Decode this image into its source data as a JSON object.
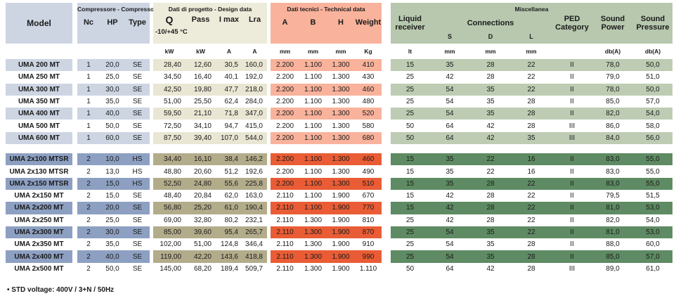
{
  "colors": {
    "blue_light": "#cdd5e3",
    "blue_dark": "#8da0c2",
    "beige_header": "#edebd9",
    "beige_light": "#e9e6d3",
    "beige_dark": "#b3ac8b",
    "salmon": "#f9b29b",
    "orange": "#e95c35",
    "green_header": "#b7c8ae",
    "green_light": "#bdccb3",
    "green_dark": "#5e8b63",
    "text": "#1a1a1a"
  },
  "table": {
    "sections": {
      "compressor": {
        "title": "Compressore - Compressor"
      },
      "design": {
        "title": "Dati di progetto - Design data",
        "subtitle": "-10/+45 °C"
      },
      "technical": {
        "title": "Dati tecnici - Technical data"
      },
      "miscellanea": {
        "title": "Miscellanea"
      }
    },
    "columns": {
      "model": "Model",
      "nc": "Nc",
      "hp": "HP",
      "type": "Type",
      "q": "Q",
      "pass": "Pass",
      "imax": "I max",
      "lra": "Lra",
      "a": "A",
      "b": "B",
      "h": "H",
      "weight": "Weight",
      "liquid_receiver": "Liquid receiver",
      "connections": "Connections",
      "s": "S",
      "d": "D",
      "l": "L",
      "ped": "PED Category",
      "sound_power": "Sound Power",
      "sound_pressure": "Sound Pressure"
    },
    "units": {
      "q": "kW",
      "pass": "kW",
      "imax": "A",
      "lra": "A",
      "a": "mm",
      "b": "mm",
      "h": "mm",
      "weight": "Kg",
      "liquid_receiver": "lt",
      "s": "mm",
      "d": "mm",
      "l": "mm",
      "sound_power": "db(A)",
      "sound_pressure": "db(A)"
    },
    "groups": [
      {
        "rows": [
          {
            "shaded": true,
            "values": [
              "UMA 200 MT",
              "1",
              "20,0",
              "SE",
              "28,40",
              "12,60",
              "30,5",
              "160,0",
              "2.200",
              "1.100",
              "1.300",
              "410",
              "15",
              "35",
              "28",
              "22",
              "II",
              "78,0",
              "50,0"
            ]
          },
          {
            "shaded": false,
            "values": [
              "UMA 250 MT",
              "1",
              "25,0",
              "SE",
              "34,50",
              "16,40",
              "40,1",
              "192,0",
              "2.200",
              "1.100",
              "1.300",
              "430",
              "25",
              "42",
              "28",
              "22",
              "II",
              "79,0",
              "51,0"
            ]
          },
          {
            "shaded": true,
            "values": [
              "UMA 300 MT",
              "1",
              "30,0",
              "SE",
              "42,50",
              "19,80",
              "47,7",
              "218,0",
              "2.200",
              "1.100",
              "1.300",
              "460",
              "25",
              "54",
              "35",
              "22",
              "II",
              "78,0",
              "50,0"
            ]
          },
          {
            "shaded": false,
            "values": [
              "UMA 350 MT",
              "1",
              "35,0",
              "SE",
              "51,00",
              "25,50",
              "62,4",
              "284,0",
              "2.200",
              "1.100",
              "1.300",
              "480",
              "25",
              "54",
              "35",
              "28",
              "II",
              "85,0",
              "57,0"
            ]
          },
          {
            "shaded": true,
            "values": [
              "UMA 400 MT",
              "1",
              "40,0",
              "SE",
              "59,50",
              "21,10",
              "71,8",
              "347,0",
              "2.200",
              "1.100",
              "1.300",
              "520",
              "25",
              "54",
              "35",
              "28",
              "II",
              "82,0",
              "54,0"
            ]
          },
          {
            "shaded": false,
            "values": [
              "UMA 500 MT",
              "1",
              "50,0",
              "SE",
              "72,50",
              "34,10",
              "94,7",
              "415,0",
              "2.200",
              "1.100",
              "1.300",
              "580",
              "50",
              "64",
              "42",
              "28",
              "III",
              "86,0",
              "58,0"
            ]
          },
          {
            "shaded": true,
            "values": [
              "UMA 600 MT",
              "1",
              "60,0",
              "SE",
              "87,50",
              "39,40",
              "107,0",
              "544,0",
              "2.200",
              "1.100",
              "1.300",
              "680",
              "50",
              "64",
              "42",
              "35",
              "III",
              "84,0",
              "56,0"
            ]
          }
        ]
      },
      {
        "rows": [
          {
            "shaded": true,
            "values": [
              "UMA 2x100 MTSR",
              "2",
              "10,0",
              "HS",
              "34,40",
              "16,10",
              "38,4",
              "146,2",
              "2.200",
              "1.100",
              "1.300",
              "460",
              "15",
              "35",
              "22",
              "16",
              "II",
              "83,0",
              "55,0"
            ]
          },
          {
            "shaded": false,
            "values": [
              "UMA 2x130 MTSR",
              "2",
              "13,0",
              "HS",
              "48,80",
              "20,60",
              "51,2",
              "192,6",
              "2.200",
              "1.100",
              "1.300",
              "490",
              "15",
              "35",
              "22",
              "16",
              "II",
              "83,0",
              "55,0"
            ]
          },
          {
            "shaded": true,
            "values": [
              "UMA 2x150 MTSR",
              "2",
              "15,0",
              "HS",
              "52,50",
              "24,80",
              "55,6",
              "225,8",
              "2.200",
              "1.100",
              "1.300",
              "510",
              "15",
              "35",
              "28",
              "22",
              "II",
              "83,0",
              "55,0"
            ]
          },
          {
            "shaded": false,
            "values": [
              "UMA 2x150 MT",
              "2",
              "15,0",
              "SE",
              "48,40",
              "20,84",
              "62,0",
              "163,0",
              "2.110",
              "1.100",
              "1.900",
              "670",
              "15",
              "42",
              "28",
              "22",
              "II",
              "79,5",
              "51,5"
            ]
          },
          {
            "shaded": true,
            "values": [
              "UMA 2x200 MT",
              "2",
              "20,0",
              "SE",
              "56,80",
              "25,20",
              "61,0",
              "190,4",
              "2.110",
              "1.100",
              "1.900",
              "770",
              "15",
              "42",
              "28",
              "22",
              "II",
              "81,0",
              "53,0"
            ]
          },
          {
            "shaded": false,
            "values": [
              "UMA 2x250 MT",
              "2",
              "25,0",
              "SE",
              "69,00",
              "32,80",
              "80,2",
              "232,1",
              "2.110",
              "1.300",
              "1.900",
              "810",
              "25",
              "42",
              "28",
              "22",
              "II",
              "82,0",
              "54,0"
            ]
          },
          {
            "shaded": true,
            "values": [
              "UMA 2x300 MT",
              "2",
              "30,0",
              "SE",
              "85,00",
              "39,60",
              "95,4",
              "265,7",
              "2.110",
              "1.300",
              "1.900",
              "870",
              "25",
              "54",
              "35",
              "22",
              "II",
              "81,0",
              "53,0"
            ]
          },
          {
            "shaded": false,
            "values": [
              "UMA 2x350 MT",
              "2",
              "35,0",
              "SE",
              "102,00",
              "51,00",
              "124,8",
              "346,4",
              "2.110",
              "1.300",
              "1.900",
              "910",
              "25",
              "54",
              "35",
              "28",
              "II",
              "88,0",
              "60,0"
            ]
          },
          {
            "shaded": true,
            "values": [
              "UMA 2x400 MT",
              "2",
              "40,0",
              "SE",
              "119,00",
              "42,20",
              "143,6",
              "418,8",
              "2.110",
              "1.300",
              "1.900",
              "990",
              "25",
              "54",
              "35",
              "28",
              "II",
              "85,0",
              "57,0"
            ]
          },
          {
            "shaded": false,
            "values": [
              "UMA 2x500 MT",
              "2",
              "50,0",
              "SE",
              "145,00",
              "68,20",
              "189,4",
              "509,7",
              "2.110",
              "1.300",
              "1.900",
              "1.110",
              "50",
              "64",
              "42",
              "28",
              "III",
              "89,0",
              "61,0"
            ]
          }
        ]
      }
    ]
  },
  "footer": {
    "note": "• STD voltage: 400V / 3+N / 50Hz"
  }
}
